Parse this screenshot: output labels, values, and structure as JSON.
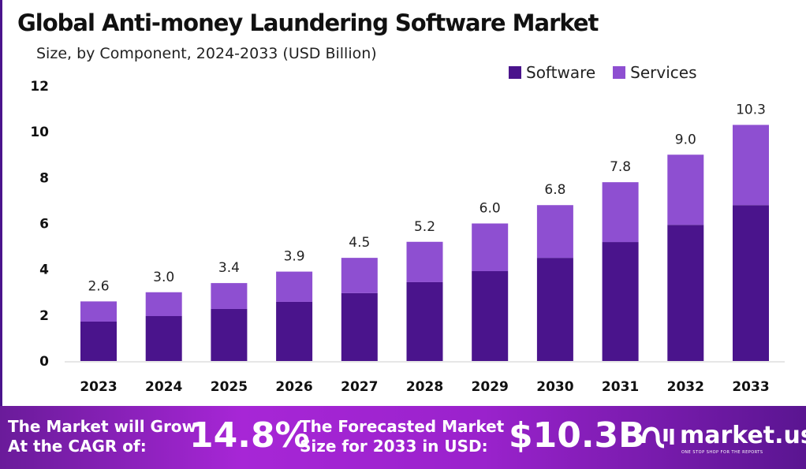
{
  "chart_data": {
    "type": "bar",
    "stacked": true,
    "title": "Global Anti-money Laundering Software Market",
    "subtitle": "Size, by Component, 2024-2033 (USD Billion)",
    "categories": [
      "2023",
      "2024",
      "2025",
      "2026",
      "2027",
      "2028",
      "2029",
      "2030",
      "2031",
      "2032",
      "2033"
    ],
    "series": [
      {
        "name": "Software",
        "color": "#4a148c",
        "values": [
          1.72,
          1.96,
          2.27,
          2.58,
          2.96,
          3.44,
          3.92,
          4.5,
          5.19,
          5.94,
          6.8
        ]
      },
      {
        "name": "Services",
        "color": "#8e4fd1",
        "values": [
          0.88,
          1.04,
          1.13,
          1.32,
          1.54,
          1.76,
          2.08,
          2.3,
          2.61,
          3.06,
          3.5
        ]
      }
    ],
    "totals": [
      "2.6",
      "3.0",
      "3.4",
      "3.9",
      "4.5",
      "5.2",
      "6.0",
      "6.8",
      "7.8",
      "9.0",
      "10.3"
    ],
    "yticks": [
      "0",
      "2",
      "4",
      "6",
      "8",
      "10",
      "12"
    ],
    "ylim": [
      0,
      12
    ],
    "xlabel": "",
    "ylabel": "",
    "grid": false,
    "legend": "top-right"
  },
  "footer": {
    "cagr_label_1": "The Market will Grow",
    "cagr_label_2": "At the CAGR of:",
    "cagr_value": "14.8%",
    "forecast_label_1": "The Forecasted Market",
    "forecast_label_2": "Size for 2033 in USD:",
    "forecast_value": "$10.3B",
    "logo_text": "market.us",
    "logo_tagline": "ONE STOP SHOP FOR THE REPORTS"
  }
}
